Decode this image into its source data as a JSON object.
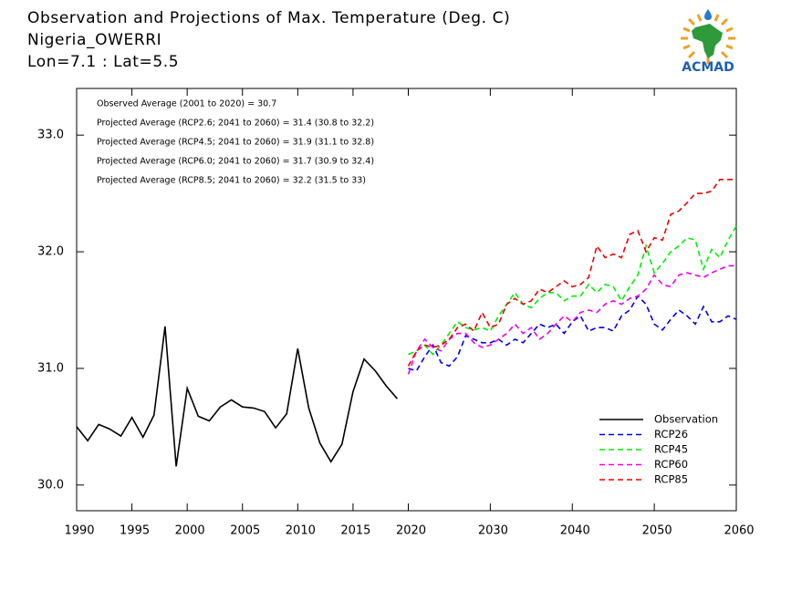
{
  "chart_data": {
    "type": "line",
    "title_lines": [
      "Observation and Projections of Max. Temperature (Deg. C)",
      "Nigeria_OWERRI",
      "Lon=7.1 : Lat=5.5"
    ],
    "annotations": [
      "Observed Average (2001 to 2020) = 30.7",
      "Projected Average (RCP2.6; 2041 to 2060) = 31.4 (30.8 to 32.2)",
      "Projected Average (RCP4.5; 2041 to 2060) = 31.9 (31.1 to 32.8)",
      "Projected Average (RCP6.0; 2041 to 2060) = 31.7 (30.9 to 32.4)",
      "Projected Average (RCP8.5; 2041 to 2060) = 32.2 (31.5 to 33)"
    ],
    "logo_text": "ACMAD",
    "xlim": [
      1990,
      2060
    ],
    "xticks": [
      1990,
      1995,
      2000,
      2005,
      2010,
      2015,
      2020,
      2030,
      2040,
      2050,
      2060
    ],
    "ylim": [
      29.78,
      33.4
    ],
    "yticks": [
      {
        "value": 30,
        "label": "30.0"
      },
      {
        "value": 31,
        "label": "31.0"
      },
      {
        "value": 32,
        "label": "32.0"
      },
      {
        "value": 33,
        "label": "33.0"
      }
    ],
    "legend": "lower right",
    "series": [
      {
        "name": "Observation",
        "color": "#000000",
        "style": "solid",
        "x": [
          1990,
          1991,
          1992,
          1993,
          1994,
          1995,
          1996,
          1997,
          1998,
          1999,
          2000,
          2001,
          2002,
          2003,
          2004,
          2005,
          2006,
          2007,
          2008,
          2009,
          2010,
          2011,
          2012,
          2013,
          2014,
          2015,
          2016,
          2017,
          2018,
          2019
        ],
        "values": [
          30.5,
          30.38,
          30.52,
          30.48,
          30.42,
          30.58,
          30.41,
          30.6,
          31.36,
          30.16,
          30.83,
          30.59,
          30.55,
          30.67,
          30.73,
          30.67,
          30.66,
          30.63,
          30.49,
          30.61,
          31.17,
          30.66,
          30.36,
          30.2,
          30.35,
          30.8,
          31.08,
          30.98,
          30.85,
          30.74
        ]
      },
      {
        "name": "RCP26",
        "color": "#0000ee",
        "style": "dashed",
        "x": [
          2020,
          2021,
          2022,
          2023,
          2024,
          2025,
          2026,
          2027,
          2028,
          2029,
          2030,
          2031,
          2032,
          2033,
          2034,
          2035,
          2036,
          2037,
          2038,
          2039,
          2040,
          2041,
          2042,
          2043,
          2044,
          2045,
          2046,
          2047,
          2048,
          2049,
          2050,
          2051,
          2052,
          2053,
          2054,
          2055,
          2056,
          2057,
          2058,
          2059,
          2060
        ],
        "values": [
          31.0,
          30.98,
          31.1,
          31.2,
          31.05,
          31.02,
          31.1,
          31.28,
          31.25,
          31.22,
          31.22,
          31.25,
          31.2,
          31.25,
          31.22,
          31.3,
          31.38,
          31.35,
          31.38,
          31.3,
          31.4,
          31.45,
          31.32,
          31.35,
          31.35,
          31.32,
          31.45,
          31.5,
          31.62,
          31.55,
          31.38,
          31.33,
          31.42,
          31.5,
          31.45,
          31.38,
          31.53,
          31.4,
          31.4,
          31.45,
          31.42
        ]
      },
      {
        "name": "RCP45",
        "color": "#00ee00",
        "style": "dashed",
        "x": [
          2020,
          2021,
          2022,
          2023,
          2024,
          2025,
          2026,
          2027,
          2028,
          2029,
          2030,
          2031,
          2032,
          2033,
          2034,
          2035,
          2036,
          2037,
          2038,
          2039,
          2040,
          2041,
          2042,
          2043,
          2044,
          2045,
          2046,
          2047,
          2048,
          2049,
          2050,
          2051,
          2052,
          2053,
          2054,
          2055,
          2056,
          2057,
          2058,
          2059,
          2060
        ],
        "values": [
          31.12,
          31.15,
          31.2,
          31.12,
          31.2,
          31.3,
          31.4,
          31.35,
          31.33,
          31.35,
          31.32,
          31.45,
          31.55,
          31.65,
          31.55,
          31.52,
          31.6,
          31.65,
          31.65,
          31.58,
          31.62,
          31.62,
          31.72,
          31.65,
          31.72,
          31.7,
          31.58,
          31.7,
          31.8,
          32.05,
          31.82,
          31.9,
          32.0,
          32.05,
          32.12,
          32.1,
          31.85,
          32.02,
          31.95,
          32.1,
          32.22
        ]
      },
      {
        "name": "RCP60",
        "color": "#ee00ee",
        "style": "dashed",
        "x": [
          2020,
          2021,
          2022,
          2023,
          2024,
          2025,
          2026,
          2027,
          2028,
          2029,
          2030,
          2031,
          2032,
          2033,
          2034,
          2035,
          2036,
          2037,
          2038,
          2039,
          2040,
          2041,
          2042,
          2043,
          2044,
          2045,
          2046,
          2047,
          2048,
          2049,
          2050,
          2051,
          2052,
          2053,
          2054,
          2055,
          2056,
          2057,
          2058,
          2059,
          2060
        ],
        "values": [
          30.95,
          31.15,
          31.25,
          31.18,
          31.15,
          31.25,
          31.3,
          31.3,
          31.22,
          31.18,
          31.2,
          31.25,
          31.3,
          31.38,
          31.3,
          31.35,
          31.25,
          31.3,
          31.38,
          31.45,
          31.4,
          31.48,
          31.5,
          31.48,
          31.55,
          31.58,
          31.55,
          31.6,
          31.62,
          31.68,
          31.8,
          31.72,
          31.7,
          31.8,
          31.82,
          31.8,
          31.78,
          31.82,
          31.85,
          31.88,
          31.88
        ]
      },
      {
        "name": "RCP85",
        "color": "#ee0000",
        "style": "dashed",
        "x": [
          2020,
          2021,
          2022,
          2023,
          2024,
          2025,
          2026,
          2027,
          2028,
          2029,
          2030,
          2031,
          2032,
          2033,
          2034,
          2035,
          2036,
          2037,
          2038,
          2039,
          2040,
          2041,
          2042,
          2043,
          2044,
          2045,
          2046,
          2047,
          2048,
          2049,
          2050,
          2051,
          2052,
          2053,
          2054,
          2055,
          2056,
          2057,
          2058,
          2059,
          2060
        ],
        "values": [
          31.02,
          31.15,
          31.2,
          31.18,
          31.2,
          31.25,
          31.35,
          31.38,
          31.32,
          31.48,
          31.35,
          31.38,
          31.55,
          31.6,
          31.55,
          31.58,
          31.68,
          31.65,
          31.7,
          31.75,
          31.7,
          31.72,
          31.78,
          32.05,
          31.95,
          31.98,
          31.95,
          32.15,
          32.18,
          32.0,
          32.12,
          32.1,
          32.32,
          32.35,
          32.42,
          32.5,
          32.5,
          32.52,
          32.62,
          32.62,
          32.62
        ]
      }
    ]
  }
}
